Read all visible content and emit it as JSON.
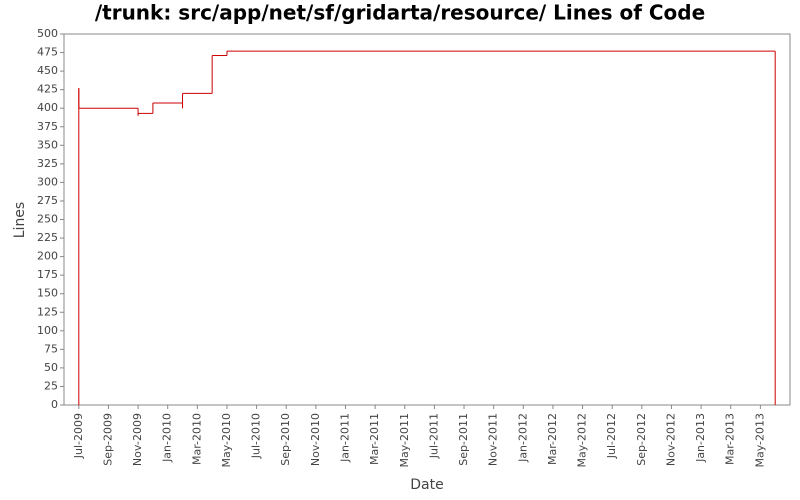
{
  "chart_data": {
    "type": "step",
    "title": "/trunk: src/app/net/sf/gridarta/resource/ Lines of Code",
    "x_label": "Date",
    "y_label": "Lines",
    "x": [
      "2009-07",
      "2009-07",
      "2009-07",
      "2009-11",
      "2009-11",
      "2009-12",
      "2010-02",
      "2010-02",
      "2010-04",
      "2010-05",
      "2013-06",
      "2013-06"
    ],
    "values": [
      0,
      427,
      400,
      390,
      393,
      407,
      400,
      420,
      471,
      477,
      477,
      0
    ],
    "color": "#cc0000",
    "xlim": [
      "2009-06",
      "2013-07"
    ],
    "xticks": [
      "Jul-2009",
      "Sep-2009",
      "Nov-2009",
      "Jan-2010",
      "Mar-2010",
      "May-2010",
      "Jul-2010",
      "Sep-2010",
      "Nov-2010",
      "Jan-2011",
      "Mar-2011",
      "May-2011",
      "Jul-2011",
      "Sep-2011",
      "Nov-2011",
      "Jan-2012",
      "Mar-2012",
      "May-2012",
      "Jul-2012",
      "Sep-2012",
      "Nov-2012",
      "Jan-2013",
      "Mar-2013",
      "May-2013"
    ],
    "ylim": [
      0,
      500
    ],
    "yticks": [
      0,
      25,
      50,
      75,
      100,
      125,
      150,
      175,
      200,
      225,
      250,
      275,
      300,
      325,
      350,
      375,
      400,
      425,
      450,
      475,
      500
    ]
  }
}
